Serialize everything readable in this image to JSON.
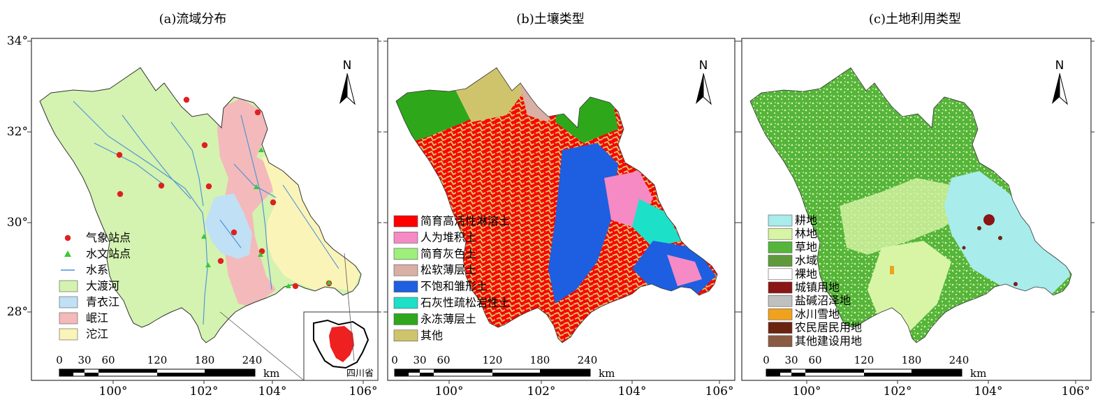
{
  "lat_ticks": [
    "34°",
    "32°",
    "30°",
    "28°"
  ],
  "lon_ticks": [
    "100°",
    "102°",
    "104°",
    "106°"
  ],
  "north": "N",
  "scale": {
    "ticks": [
      "0",
      "30",
      "60",
      "120",
      "180",
      "240"
    ],
    "unit": "km"
  },
  "panels": [
    {
      "title": "(a)流域分布",
      "inset_label": "四川省",
      "legend": [
        {
          "label": "气象站点",
          "kind": "dot",
          "color": "#e02020"
        },
        {
          "label": "水文站点",
          "kind": "triangle",
          "color": "#33cc33"
        },
        {
          "label": "水系",
          "kind": "line",
          "color": "#4a90d9"
        },
        {
          "label": "大渡河",
          "kind": "box",
          "color": "#d4f2b0"
        },
        {
          "label": "青衣江",
          "kind": "box",
          "color": "#bfe0f5"
        },
        {
          "label": "岷江",
          "kind": "box",
          "color": "#f4b9bb"
        },
        {
          "label": "沱江",
          "kind": "box",
          "color": "#fbf4b8"
        }
      ]
    },
    {
      "title": "(b)土壤类型",
      "legend": [
        {
          "label": "简育高活性淋溶土",
          "color": "#ff0000"
        },
        {
          "label": "人为堆积土",
          "color": "#f58ac4"
        },
        {
          "label": "简育灰色土",
          "color": "#9ef07a"
        },
        {
          "label": "松软薄层土",
          "color": "#d9b0a6"
        },
        {
          "label": "不饱和雏形土",
          "color": "#1d5fe0"
        },
        {
          "label": "石灰性疏松岩性土",
          "color": "#1de0c8"
        },
        {
          "label": "永冻薄层土",
          "color": "#2ea81a"
        },
        {
          "label": "其他",
          "color": "#cfc46c"
        }
      ]
    },
    {
      "title": "(c)土地利用类型",
      "legend": [
        {
          "label": "耕地",
          "color": "#a8ecec"
        },
        {
          "label": "林地",
          "color": "#d8f5a6"
        },
        {
          "label": "草地",
          "color": "#55b53a"
        },
        {
          "label": "水域",
          "color": "#5f9a3a"
        },
        {
          "label": "裸地",
          "color": "#ffffff"
        },
        {
          "label": "城镇用地",
          "color": "#8b1414"
        },
        {
          "label": "盐碱沼泽地",
          "color": "#c0c0c0"
        },
        {
          "label": "冰川雪地",
          "color": "#f0a21e"
        },
        {
          "label": "农民居民用地",
          "color": "#6b2410"
        },
        {
          "label": "其他建设用地",
          "color": "#8a5a42"
        }
      ]
    }
  ]
}
